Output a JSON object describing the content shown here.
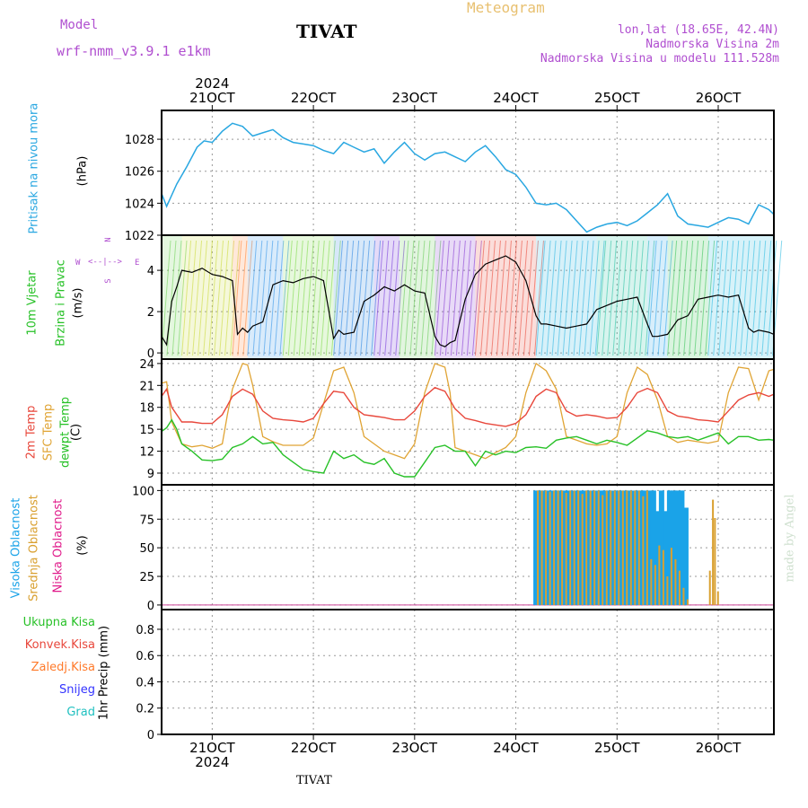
{
  "header": {
    "model_label": "Model",
    "model_name": "wrf-nmm_v3.9.1  e1km",
    "title": "TIVAT",
    "meteogram_label": "Meteogram",
    "lonlat": "lon,lat (18.65E, 42.4N)",
    "altitude": "Nadmorska Visina 2m",
    "model_altitude": "Nadmorska Visina u modelu 111.528m",
    "year_top": "2024",
    "footer_title": "TIVAT",
    "year_bottom": "2024",
    "credit": "made by Angel"
  },
  "colors": {
    "pressure": "#29a7e1",
    "temp2m": "#e8473b",
    "sfc_temp": "#e0a434",
    "dewpt": "#27c127",
    "cloud_high": "#1aa3e8",
    "cloud_mid": "#d9a030",
    "cloud_low": "#e01a8a",
    "precip_total": "#27c127",
    "precip_conv": "#e8473b",
    "precip_frozen": "#ff7a2a",
    "precip_snow": "#3333ff",
    "precip_grad": "#20c0c0",
    "label_purple": "#b04fd0",
    "label_gold": "#e8c070"
  },
  "panel_labels": {
    "pressure": [
      "Pritisak na nivou mora",
      "(hPa)"
    ],
    "wind": [
      "10m Vjetar",
      "Brzina i Pravac",
      "(m/s)"
    ],
    "temp": [
      "2m Temp",
      "SFC Temp",
      "dewpt Temp",
      "(C)"
    ],
    "cloud": [
      "Visoka Oblacnost",
      "Srednja Oblacnost",
      "Niska Oblacnost",
      "(%)"
    ],
    "precip": [
      "Ukupna Kisa",
      "Konvek.Kisa",
      "Zaledj.Kisa",
      "Snijeg",
      "Grad",
      "1hr Precip (mm)"
    ],
    "compass": {
      "n": "N",
      "s": "S",
      "w": "W",
      "e": "E"
    }
  },
  "chart_data": [
    {
      "id": "pressure",
      "type": "line",
      "xlabels_top": [
        "21OCT",
        "22OCT",
        "23OCT",
        "24OCT",
        "25OCT",
        "26OCT"
      ],
      "ylabel": "Pritisak na nivou mora (hPa)",
      "yticks": [
        1022,
        1024,
        1026,
        1028
      ],
      "ylim": [
        1022,
        1029.8
      ],
      "xlim": [
        0.5,
        6.55
      ],
      "series": [
        {
          "x": [
            0.5,
            0.55,
            0.65,
            0.75,
            0.85,
            0.92,
            1.0,
            1.1,
            1.2,
            1.3,
            1.4,
            1.5,
            1.6,
            1.7,
            1.8,
            1.9,
            2.0,
            2.1,
            2.2,
            2.3,
            2.4,
            2.5,
            2.6,
            2.7,
            2.8,
            2.9,
            3.0,
            3.1,
            3.2,
            3.3,
            3.4,
            3.5,
            3.6,
            3.7,
            3.8,
            3.9,
            4.0,
            4.1,
            4.2,
            4.3,
            4.4,
            4.5,
            4.6,
            4.7,
            4.8,
            4.9,
            5.0,
            5.1,
            5.2,
            5.3,
            5.4,
            5.5,
            5.6,
            5.7,
            5.8,
            5.9,
            6.0,
            6.1,
            6.2,
            6.3,
            6.4,
            6.5,
            6.55
          ],
          "y": [
            1024.6,
            1023.8,
            1025.2,
            1026.3,
            1027.5,
            1027.9,
            1027.8,
            1028.5,
            1029.0,
            1028.8,
            1028.2,
            1028.4,
            1028.6,
            1028.1,
            1027.8,
            1027.7,
            1027.6,
            1027.3,
            1027.1,
            1027.8,
            1027.5,
            1027.2,
            1027.4,
            1026.5,
            1027.2,
            1027.8,
            1027.1,
            1026.7,
            1027.1,
            1027.2,
            1026.9,
            1026.6,
            1027.2,
            1027.6,
            1026.9,
            1026.1,
            1025.8,
            1025.0,
            1024.0,
            1023.9,
            1024.0,
            1023.6,
            1022.9,
            1022.2,
            1022.5,
            1022.7,
            1022.8,
            1022.6,
            1022.9,
            1023.4,
            1023.9,
            1024.6,
            1023.2,
            1022.7,
            1022.6,
            1022.5,
            1022.8,
            1023.1,
            1023.0,
            1022.7,
            1023.9,
            1023.6,
            1023.3
          ]
        }
      ]
    },
    {
      "id": "wind",
      "type": "line",
      "ylabel": "10m Vjetar Brzina i Pravac (m/s)",
      "yticks": [
        0,
        2,
        4
      ],
      "ylim": [
        -0.3,
        5.7
      ],
      "xlim": [
        0.5,
        6.55
      ],
      "series": [
        {
          "name": "speed",
          "x": [
            0.5,
            0.55,
            0.6,
            0.65,
            0.7,
            0.8,
            0.9,
            1.0,
            1.1,
            1.2,
            1.25,
            1.3,
            1.35,
            1.4,
            1.5,
            1.6,
            1.7,
            1.8,
            1.9,
            2.0,
            2.1,
            2.2,
            2.25,
            2.3,
            2.4,
            2.5,
            2.6,
            2.7,
            2.8,
            2.9,
            3.0,
            3.1,
            3.2,
            3.25,
            3.3,
            3.35,
            3.4,
            3.5,
            3.6,
            3.7,
            3.8,
            3.9,
            4.0,
            4.1,
            4.2,
            4.25,
            4.3,
            4.4,
            4.5,
            4.6,
            4.7,
            4.8,
            4.9,
            5.0,
            5.1,
            5.2,
            5.3,
            5.35,
            5.4,
            5.5,
            5.6,
            5.7,
            5.8,
            5.9,
            6.0,
            6.1,
            6.2,
            6.3,
            6.35,
            6.4,
            6.5,
            6.55
          ],
          "y": [
            0.8,
            0.4,
            2.5,
            3.2,
            4.0,
            3.9,
            4.1,
            3.8,
            3.7,
            3.5,
            0.9,
            1.2,
            1.0,
            1.3,
            1.5,
            3.3,
            3.5,
            3.4,
            3.6,
            3.7,
            3.5,
            0.7,
            1.1,
            0.9,
            1.0,
            2.5,
            2.8,
            3.2,
            3.0,
            3.3,
            3.0,
            2.9,
            0.8,
            0.4,
            0.3,
            0.5,
            0.6,
            2.6,
            3.8,
            4.3,
            4.5,
            4.7,
            4.4,
            3.5,
            1.8,
            1.4,
            1.4,
            1.3,
            1.2,
            1.3,
            1.4,
            2.1,
            2.3,
            2.5,
            2.6,
            2.7,
            1.4,
            0.8,
            0.8,
            0.9,
            1.6,
            1.8,
            2.6,
            2.7,
            2.8,
            2.7,
            2.8,
            1.2,
            1.0,
            1.1,
            1.0,
            0.9
          ]
        }
      ]
    },
    {
      "id": "temp",
      "type": "line",
      "ylabel": "Temp (C)",
      "yticks": [
        9,
        12,
        15,
        18,
        21,
        24
      ],
      "ylim": [
        7.4,
        24.6
      ],
      "xlim": [
        0.5,
        6.55
      ],
      "series": [
        {
          "name": "2m Temp",
          "color": "#e8473b",
          "x": [
            0.5,
            0.55,
            0.6,
            0.7,
            0.8,
            0.9,
            1.0,
            1.1,
            1.2,
            1.3,
            1.4,
            1.5,
            1.6,
            1.7,
            1.8,
            1.9,
            2.0,
            2.1,
            2.2,
            2.3,
            2.4,
            2.5,
            2.6,
            2.7,
            2.8,
            2.9,
            3.0,
            3.1,
            3.2,
            3.3,
            3.4,
            3.5,
            3.6,
            3.7,
            3.8,
            3.9,
            4.0,
            4.1,
            4.2,
            4.3,
            4.4,
            4.5,
            4.6,
            4.7,
            4.8,
            4.9,
            5.0,
            5.1,
            5.2,
            5.3,
            5.4,
            5.5,
            5.6,
            5.7,
            5.8,
            5.9,
            6.0,
            6.1,
            6.2,
            6.3,
            6.4,
            6.5,
            6.55
          ],
          "y": [
            19.5,
            20.5,
            18.0,
            16.0,
            16.0,
            15.8,
            15.8,
            17.0,
            19.5,
            20.5,
            19.8,
            17.5,
            16.5,
            16.3,
            16.2,
            16.0,
            16.5,
            18.5,
            20.2,
            20.0,
            18.0,
            17.0,
            16.8,
            16.6,
            16.3,
            16.3,
            17.5,
            19.5,
            20.7,
            20.2,
            17.8,
            16.5,
            16.2,
            15.8,
            15.6,
            15.4,
            15.8,
            17.0,
            19.5,
            20.5,
            20.0,
            17.5,
            16.8,
            17.0,
            16.8,
            16.5,
            16.6,
            18.0,
            20.0,
            20.6,
            20.0,
            17.5,
            16.8,
            16.6,
            16.3,
            16.2,
            16.0,
            17.5,
            19.0,
            19.7,
            20.0,
            19.5,
            19.8
          ]
        },
        {
          "name": "SFC Temp",
          "color": "#e0a434",
          "x": [
            0.5,
            0.55,
            0.6,
            0.7,
            0.8,
            0.9,
            1.0,
            1.1,
            1.15,
            1.2,
            1.3,
            1.35,
            1.4,
            1.5,
            1.6,
            1.7,
            1.8,
            1.9,
            2.0,
            2.1,
            2.2,
            2.3,
            2.4,
            2.5,
            2.6,
            2.7,
            2.8,
            2.9,
            3.0,
            3.1,
            3.2,
            3.3,
            3.35,
            3.4,
            3.5,
            3.6,
            3.7,
            3.8,
            3.9,
            4.0,
            4.1,
            4.2,
            4.3,
            4.4,
            4.5,
            4.6,
            4.7,
            4.8,
            4.9,
            5.0,
            5.1,
            5.2,
            5.3,
            5.4,
            5.5,
            5.6,
            5.7,
            5.8,
            5.9,
            6.0,
            6.1,
            6.2,
            6.3,
            6.4,
            6.5,
            6.55
          ],
          "y": [
            21.3,
            21.5,
            16.0,
            13.0,
            12.6,
            12.8,
            12.4,
            13.0,
            17.0,
            20.5,
            24.0,
            23.8,
            21.0,
            14.0,
            13.3,
            12.8,
            12.8,
            12.8,
            13.8,
            18.5,
            23.0,
            23.5,
            20.0,
            14.0,
            13.0,
            12.0,
            11.5,
            11.0,
            13.0,
            20.0,
            24.0,
            23.5,
            20.0,
            12.5,
            12.0,
            11.5,
            11.0,
            11.8,
            12.5,
            14.0,
            20.0,
            24.0,
            23.0,
            20.5,
            14.0,
            13.5,
            13.0,
            12.8,
            13.0,
            14.0,
            20.0,
            23.5,
            22.5,
            19.0,
            14.0,
            13.2,
            13.5,
            13.3,
            13.1,
            13.4,
            20.0,
            23.5,
            23.3,
            19.0,
            23.0,
            23.2
          ]
        },
        {
          "name": "dewpt Temp",
          "color": "#27c127",
          "x": [
            0.5,
            0.55,
            0.6,
            0.65,
            0.7,
            0.8,
            0.9,
            1.0,
            1.1,
            1.2,
            1.3,
            1.4,
            1.5,
            1.6,
            1.7,
            1.8,
            1.9,
            2.0,
            2.1,
            2.2,
            2.3,
            2.4,
            2.5,
            2.6,
            2.7,
            2.8,
            2.9,
            3.0,
            3.1,
            3.2,
            3.3,
            3.4,
            3.5,
            3.6,
            3.7,
            3.8,
            3.9,
            4.0,
            4.1,
            4.2,
            4.3,
            4.4,
            4.5,
            4.6,
            4.7,
            4.8,
            4.9,
            5.0,
            5.1,
            5.2,
            5.3,
            5.4,
            5.5,
            5.6,
            5.7,
            5.8,
            5.9,
            6.0,
            6.1,
            6.2,
            6.3,
            6.4,
            6.5,
            6.55
          ],
          "y": [
            14.7,
            15.2,
            16.3,
            15.0,
            13.0,
            12.0,
            10.8,
            10.7,
            10.9,
            12.5,
            13.0,
            14.0,
            13.0,
            13.2,
            11.5,
            10.5,
            9.5,
            9.2,
            9.0,
            12.0,
            11.0,
            11.5,
            10.5,
            10.2,
            11.0,
            9.0,
            8.5,
            8.5,
            10.5,
            12.5,
            12.8,
            12.0,
            12.0,
            10.0,
            12.0,
            11.5,
            12.0,
            11.8,
            12.5,
            12.6,
            12.4,
            13.5,
            13.8,
            14.0,
            13.5,
            13.0,
            13.5,
            13.2,
            12.8,
            13.8,
            14.8,
            14.5,
            14.0,
            13.8,
            14.0,
            13.5,
            14.0,
            14.5,
            13.0,
            14.0,
            14.0,
            13.5,
            13.6,
            13.5
          ]
        }
      ]
    },
    {
      "id": "cloud",
      "type": "bar",
      "ylabel": "Oblacnost (%)",
      "yticks": [
        0,
        25,
        50,
        75,
        100
      ],
      "ylim": [
        -4,
        105
      ],
      "xlim": [
        0.5,
        6.55
      ],
      "series": [
        {
          "name": "Visoka Oblacnost",
          "color": "#1aa3e8",
          "x": [
            4.2,
            4.24,
            4.28,
            4.32,
            4.36,
            4.4,
            4.44,
            4.48,
            4.52,
            4.56,
            4.6,
            4.64,
            4.68,
            4.72,
            4.76,
            4.8,
            4.84,
            4.88,
            4.92,
            4.96,
            5.0,
            5.04,
            5.08,
            5.12,
            5.16,
            5.2,
            5.24,
            5.28,
            5.32,
            5.36,
            5.4,
            5.44,
            5.48,
            5.52,
            5.56,
            5.6,
            5.64,
            5.68
          ],
          "y": [
            100,
            100,
            100,
            100,
            100,
            100,
            100,
            100,
            100,
            100,
            100,
            100,
            100,
            100,
            100,
            100,
            100,
            100,
            100,
            100,
            100,
            100,
            100,
            100,
            100,
            100,
            100,
            100,
            100,
            100,
            82,
            100,
            82,
            100,
            100,
            100,
            100,
            85
          ]
        },
        {
          "name": "Srednja Oblacnost",
          "color": "#d9a030",
          "x": [
            4.2,
            4.24,
            4.28,
            4.32,
            4.36,
            4.4,
            4.44,
            4.48,
            4.52,
            4.56,
            4.6,
            4.64,
            4.68,
            4.72,
            4.76,
            4.8,
            4.84,
            4.88,
            4.92,
            4.96,
            5.0,
            5.04,
            5.08,
            5.12,
            5.16,
            5.2,
            5.24,
            5.28,
            5.32,
            5.36,
            5.4,
            5.44,
            5.48,
            5.52,
            5.56,
            5.6,
            5.64,
            5.68,
            5.9,
            5.93,
            5.95,
            5.98
          ],
          "y": [
            100,
            100,
            100,
            99,
            100,
            100,
            100,
            98,
            100,
            100,
            100,
            97,
            100,
            100,
            100,
            100,
            96,
            100,
            100,
            100,
            100,
            100,
            100,
            100,
            100,
            100,
            95,
            100,
            40,
            35,
            52,
            48,
            25,
            50,
            40,
            30,
            15,
            5,
            30,
            92,
            76,
            12
          ]
        },
        {
          "name": "Niska Oblacnost",
          "color": "#e01a8a",
          "x": [],
          "y": []
        }
      ]
    },
    {
      "id": "precip",
      "type": "bar",
      "ylabel": "1hr Precip (mm)",
      "yticks": [
        0,
        0.2,
        0.4,
        0.6,
        0.8
      ],
      "ylim": [
        0,
        0.95
      ],
      "xlim": [
        0.5,
        6.55
      ],
      "xlabels_bottom": [
        "21OCT",
        "22OCT",
        "23OCT",
        "24OCT",
        "25OCT",
        "26OCT"
      ],
      "series": [
        {
          "name": "Ukupna Kisa",
          "x": [],
          "y": []
        },
        {
          "name": "Konvek.Kisa",
          "x": [],
          "y": []
        },
        {
          "name": "Zaledj.Kisa",
          "x": [],
          "y": []
        },
        {
          "name": "Snijeg",
          "x": [],
          "y": []
        },
        {
          "name": "Grad",
          "x": [],
          "y": []
        }
      ]
    }
  ]
}
